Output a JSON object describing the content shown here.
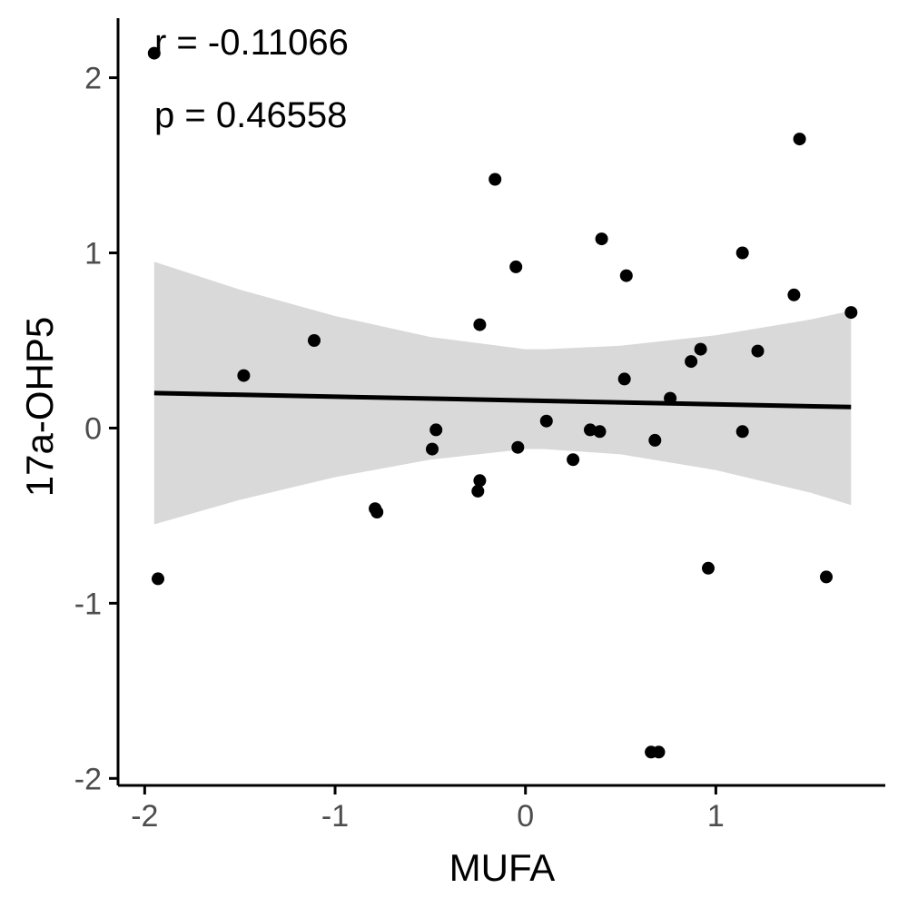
{
  "chart_data": {
    "type": "scatter",
    "title": "",
    "xlabel": "MUFA",
    "ylabel": "17a-OHP5",
    "xlim": [
      -2.14,
      1.89
    ],
    "ylim": [
      -2.04,
      2.34
    ],
    "x_ticks": [
      -2,
      -1,
      0,
      1
    ],
    "x_tick_labels": [
      "-2",
      "-1",
      "0",
      "1"
    ],
    "y_ticks": [
      -2,
      -1,
      0,
      1,
      2
    ],
    "y_tick_labels": [
      "-2",
      "-1",
      "0",
      "1",
      "2"
    ],
    "grid": false,
    "legend": "none",
    "annotations": [
      {
        "text": "r = -0.11066"
      },
      {
        "text": "p = 0.46558"
      }
    ],
    "points": [
      {
        "x": -1.95,
        "y": 2.14
      },
      {
        "x": -1.93,
        "y": -0.86
      },
      {
        "x": -1.48,
        "y": 0.3
      },
      {
        "x": -1.11,
        "y": 0.5
      },
      {
        "x": -0.79,
        "y": -0.46
      },
      {
        "x": -0.78,
        "y": -0.48
      },
      {
        "x": -0.49,
        "y": -0.12
      },
      {
        "x": -0.47,
        "y": -0.01
      },
      {
        "x": -0.24,
        "y": 0.59
      },
      {
        "x": -0.24,
        "y": -0.3
      },
      {
        "x": -0.25,
        "y": -0.36
      },
      {
        "x": -0.16,
        "y": 1.42
      },
      {
        "x": -0.05,
        "y": 0.92
      },
      {
        "x": -0.04,
        "y": -0.11
      },
      {
        "x": 0.11,
        "y": 0.04
      },
      {
        "x": 0.25,
        "y": -0.18
      },
      {
        "x": 0.34,
        "y": -0.01
      },
      {
        "x": 0.39,
        "y": -0.02
      },
      {
        "x": 0.4,
        "y": 1.08
      },
      {
        "x": 0.52,
        "y": 0.28
      },
      {
        "x": 0.53,
        "y": 0.87
      },
      {
        "x": 0.66,
        "y": -1.85
      },
      {
        "x": 0.68,
        "y": -0.07
      },
      {
        "x": 0.7,
        "y": -1.85
      },
      {
        "x": 0.76,
        "y": 0.17
      },
      {
        "x": 0.87,
        "y": 0.38
      },
      {
        "x": 0.92,
        "y": 0.45
      },
      {
        "x": 0.96,
        "y": -0.8
      },
      {
        "x": 1.14,
        "y": 1.0
      },
      {
        "x": 1.14,
        "y": -0.02
      },
      {
        "x": 1.22,
        "y": 0.44
      },
      {
        "x": 1.41,
        "y": 0.76
      },
      {
        "x": 1.44,
        "y": 1.65
      },
      {
        "x": 1.58,
        "y": -0.85
      },
      {
        "x": 1.71,
        "y": 0.66
      }
    ],
    "fit_line": {
      "x": [
        -1.95,
        1.71
      ],
      "y": [
        0.2,
        0.12
      ]
    },
    "confidence_band": {
      "x": [
        -1.95,
        -1.5,
        -1.0,
        -0.5,
        0.0,
        0.1,
        0.5,
        1.0,
        1.5,
        1.71
      ],
      "upper": [
        0.95,
        0.79,
        0.64,
        0.52,
        0.45,
        0.45,
        0.47,
        0.53,
        0.62,
        0.67
      ],
      "lower": [
        -0.55,
        -0.41,
        -0.28,
        -0.18,
        -0.12,
        -0.12,
        -0.15,
        -0.24,
        -0.37,
        -0.44
      ]
    },
    "colors": {
      "points": "#000000",
      "fit_line": "#000000",
      "confidence_band": "#d9d9d9",
      "axis": "#000000",
      "tick_labels": "#4d4d4d"
    }
  }
}
